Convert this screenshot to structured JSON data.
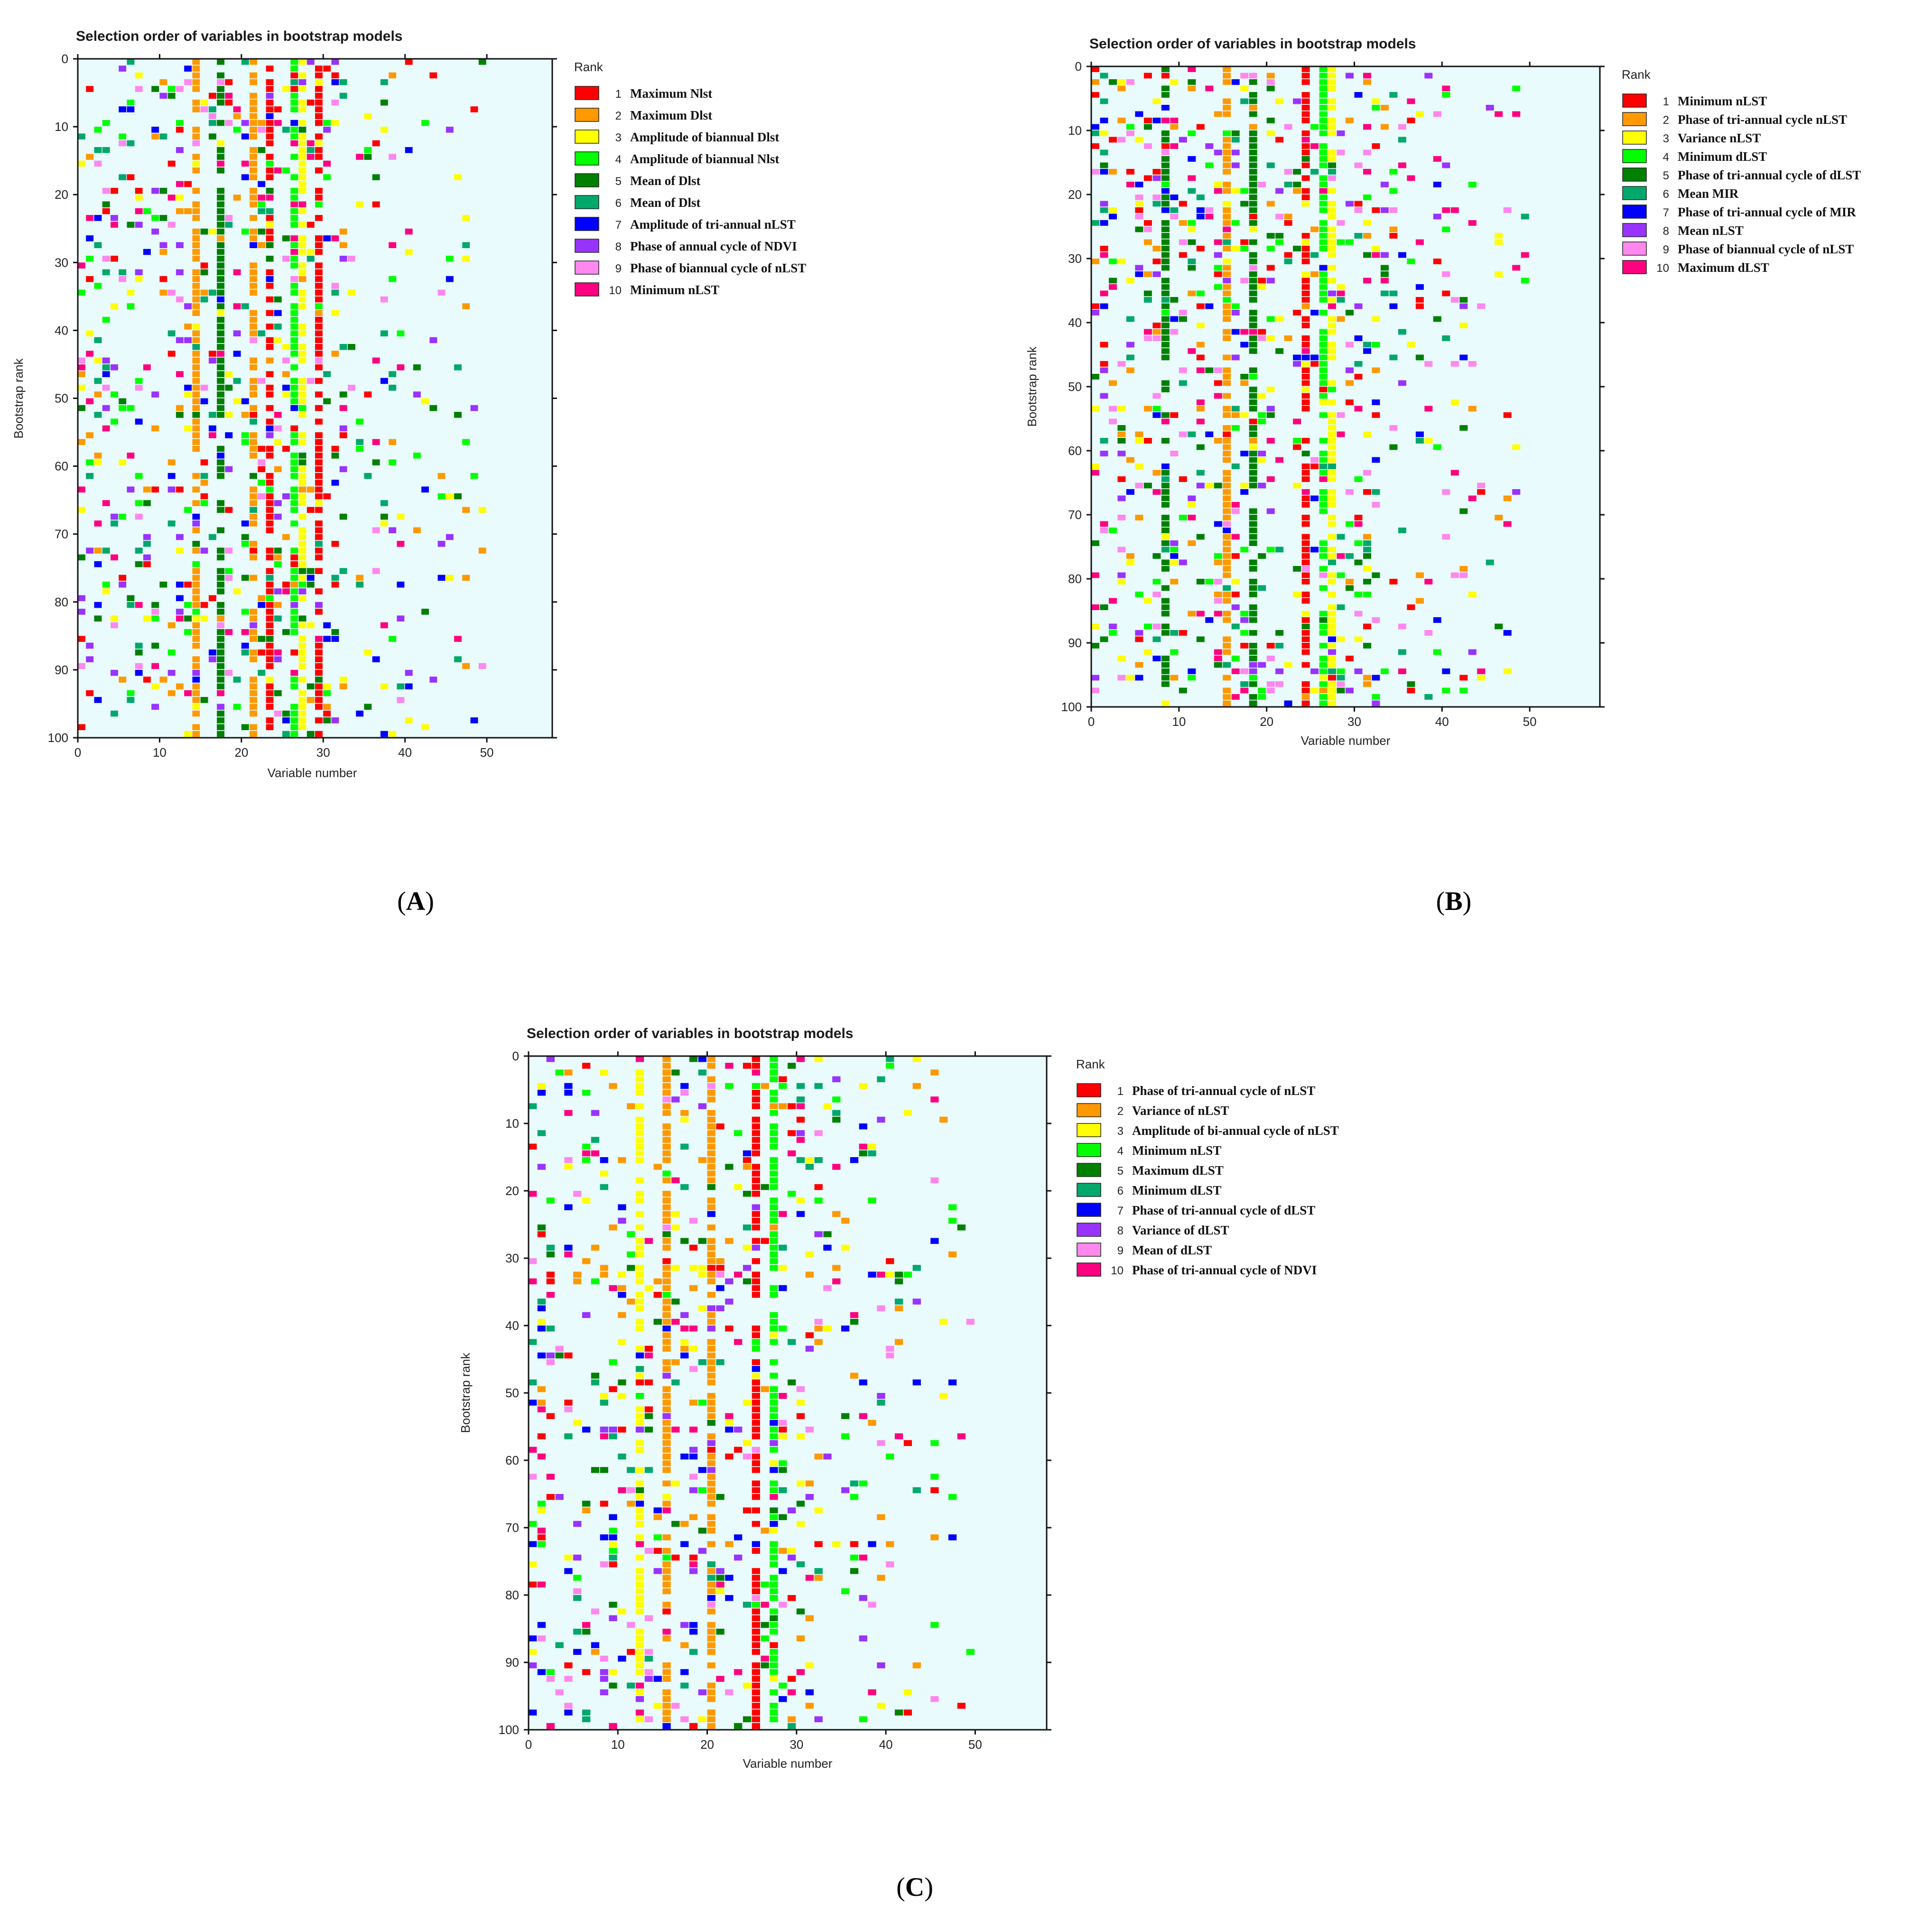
{
  "chart_data": [
    {
      "type": "heatmap",
      "panel_label": "A",
      "title": "Selection order of variables in bootstrap models",
      "xlabel": "Variable number",
      "ylabel": "Bootstrap rank",
      "xlim": [
        0,
        58
      ],
      "ylim": [
        0,
        100
      ],
      "xticks": [
        "0",
        "10",
        "20",
        "30",
        "40",
        "50"
      ],
      "yticks": [
        "0",
        "10",
        "20",
        "30",
        "40",
        "50",
        "60",
        "70",
        "80",
        "90",
        "100"
      ],
      "legend_title": "Rank",
      "legend": [
        {
          "rank": "1",
          "label": "Maximum Nlst",
          "color": "#ff0000"
        },
        {
          "rank": "2",
          "label": "Maximum Dlst",
          "color": "#ff9900"
        },
        {
          "rank": "3",
          "label": "Amplitude of biannual  Dlst",
          "color": "#ffff00"
        },
        {
          "rank": "4",
          "label": "Amplitude  of biannual  Nlst",
          "color": "#00ff00"
        },
        {
          "rank": "5",
          "label": "Mean of Dlst",
          "color": "#008000"
        },
        {
          "rank": "6",
          "label": "Mean of Dlst",
          "color": "#00a86b"
        },
        {
          "rank": "7",
          "label": "Amplitude of tri-annual  nLST",
          "color": "#0000ff"
        },
        {
          "rank": "8",
          "label": "Phase of annual  cycle of NDVI",
          "color": "#9933ff"
        },
        {
          "rank": "9",
          "label": "Phase of biannual cycle of nLST",
          "color": "#ff88ee"
        },
        {
          "rank": "10",
          "label": "Minimum nLST",
          "color": "#ff0080"
        }
      ],
      "dominant_columns": [
        {
          "variable": 29,
          "rank": "1"
        },
        {
          "variable": 23,
          "rank": "1"
        },
        {
          "variable": 14,
          "rank": "2"
        },
        {
          "variable": 21,
          "rank": "2"
        },
        {
          "variable": 27,
          "rank": "3"
        },
        {
          "variable": 26,
          "rank": "4"
        },
        {
          "variable": 17,
          "rank": "5"
        }
      ],
      "variable_range": [
        0,
        49
      ],
      "cell_density": 0.16,
      "seed": 11
    },
    {
      "type": "heatmap",
      "panel_label": "B",
      "title": "Selection order of variables in bootstrap models",
      "xlabel": "Variable number",
      "ylabel": "Bootstrap rank",
      "xlim": [
        0,
        58
      ],
      "ylim": [
        0,
        100
      ],
      "xticks": [
        "0",
        "10",
        "20",
        "30",
        "40",
        "50"
      ],
      "yticks": [
        "0",
        "10",
        "20",
        "30",
        "40",
        "50",
        "60",
        "70",
        "80",
        "90",
        "100"
      ],
      "legend_title": "Rank",
      "legend": [
        {
          "rank": "1",
          "label": "Minimum nLST",
          "color": "#ff0000"
        },
        {
          "rank": "2",
          "label": "Phase of tri-annual cycle nLST",
          "color": "#ff9900"
        },
        {
          "rank": "3",
          "label": "Variance nLST",
          "color": "#ffff00"
        },
        {
          "rank": "4",
          "label": "Minimum dLST",
          "color": "#00ff00"
        },
        {
          "rank": "5",
          "label": "Phase of tri-annual cycle of dLST",
          "color": "#008000"
        },
        {
          "rank": "6",
          "label": "Mean MIR",
          "color": "#00a86b"
        },
        {
          "rank": "7",
          "label": "Phase of tri-annual cycle of MIR",
          "color": "#0000ff"
        },
        {
          "rank": "8",
          "label": "Mean nLST",
          "color": "#9933ff"
        },
        {
          "rank": "9",
          "label": "Phase of biannual cycle of nLST",
          "color": "#ff88ee"
        },
        {
          "rank": "10",
          "label": "Maximum dLST",
          "color": "#ff0080"
        }
      ],
      "dominant_columns": [
        {
          "variable": 24,
          "rank": "1"
        },
        {
          "variable": 15,
          "rank": "2"
        },
        {
          "variable": 27,
          "rank": "3"
        },
        {
          "variable": 26,
          "rank": "4"
        },
        {
          "variable": 18,
          "rank": "5"
        },
        {
          "variable": 8,
          "rank": "5"
        }
      ],
      "variable_range": [
        0,
        49
      ],
      "cell_density": 0.17,
      "seed": 23
    },
    {
      "type": "heatmap",
      "panel_label": "C",
      "title": "Selection order of variables in bootstrap models",
      "xlabel": "Variable number",
      "ylabel": "Bootstrap rank",
      "xlim": [
        0,
        58
      ],
      "ylim": [
        0,
        100
      ],
      "xticks": [
        "0",
        "10",
        "20",
        "30",
        "40",
        "50"
      ],
      "yticks": [
        "0",
        "10",
        "20",
        "30",
        "40",
        "50",
        "60",
        "70",
        "80",
        "90",
        "100"
      ],
      "legend_title": "Rank",
      "legend": [
        {
          "rank": "1",
          "label": "Phase of tri-annual cycle of nLST",
          "color": "#ff0000"
        },
        {
          "rank": "2",
          "label": "Variance of nLST",
          "color": "#ff9900"
        },
        {
          "rank": "3",
          "label": "Amplitude of bi-annual cycle of nLST",
          "color": "#ffff00"
        },
        {
          "rank": "4",
          "label": "Minimum nLST",
          "color": "#00ff00"
        },
        {
          "rank": "5",
          "label": "Maximum dLST",
          "color": "#008000"
        },
        {
          "rank": "6",
          "label": "Minimum dLST",
          "color": "#00a86b"
        },
        {
          "rank": "7",
          "label": "Phase of tri-annual cycle of dLST",
          "color": "#0000ff"
        },
        {
          "rank": "8",
          "label": "Variance of dLST",
          "color": "#9933ff"
        },
        {
          "rank": "9",
          "label": "Mean of dLST",
          "color": "#ff88ee"
        },
        {
          "rank": "10",
          "label": "Phase of tri-annual cycle of NDVI",
          "color": "#ff0080"
        }
      ],
      "dominant_columns": [
        {
          "variable": 25,
          "rank": "1"
        },
        {
          "variable": 15,
          "rank": "2"
        },
        {
          "variable": 12,
          "rank": "3"
        },
        {
          "variable": 27,
          "rank": "4"
        },
        {
          "variable": 20,
          "rank": "2"
        }
      ],
      "variable_range": [
        0,
        49
      ],
      "cell_density": 0.16,
      "seed": 37
    }
  ]
}
